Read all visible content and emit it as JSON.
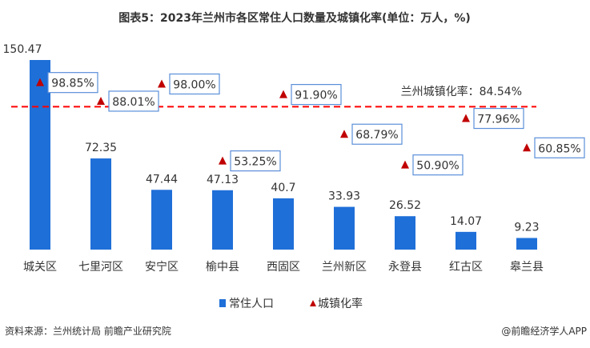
{
  "chart_data": {
    "type": "bar+scatter",
    "title": "图表5：2023年兰州市各区常住人口数量及城镇化率(单位：万人，%)",
    "categories": [
      "城关区",
      "七里河区",
      "安宁区",
      "榆中县",
      "西固区",
      "兰州新区",
      "永登县",
      "红古区",
      "皋兰县"
    ],
    "series": [
      {
        "name": "常住人口",
        "type": "bar",
        "color": "#1F6FD8",
        "values": [
          150.47,
          72.35,
          47.44,
          47.13,
          40.7,
          33.93,
          26.52,
          14.07,
          9.23
        ],
        "labels": [
          "150.47",
          "72.35",
          "47.44",
          "47.13",
          "40.7",
          "33.93",
          "26.52",
          "14.07",
          "9.23"
        ]
      },
      {
        "name": "城镇化率",
        "type": "scatter",
        "marker": "triangle",
        "color": "#C00000",
        "values": [
          98.85,
          88.01,
          98.0,
          53.25,
          91.9,
          68.79,
          50.9,
          77.96,
          60.85
        ],
        "labels": [
          "98.85%",
          "88.01%",
          "98.00%",
          "53.25%",
          "91.90%",
          "68.79%",
          "50.90%",
          "77.96%",
          "60.85%"
        ]
      }
    ],
    "reference_line": {
      "value": 84.54,
      "label": "兰州城镇化率：84.54%",
      "color": "#FF0000",
      "style": "dashed"
    },
    "legend_position": "bottom",
    "grid": false
  },
  "footer": {
    "source": "资料来源：兰州统计局 前瞻产业研究院",
    "credit": "@前瞻经济学人APP"
  }
}
